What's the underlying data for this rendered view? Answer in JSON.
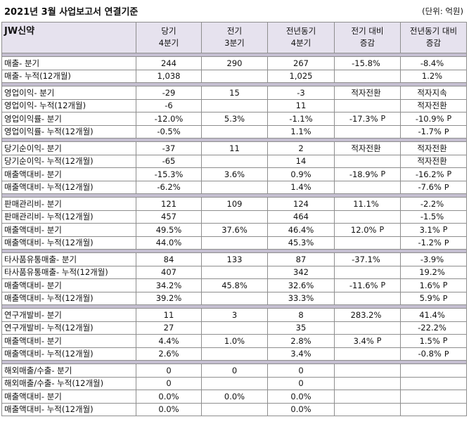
{
  "title": "2021년 3월 사업보고서 연결기준",
  "unit": "(단위: 억원)",
  "header": {
    "company": "JW신약",
    "col1": [
      "당기",
      "4분기"
    ],
    "col2": [
      "전기",
      "3분기"
    ],
    "col3": [
      "전년동기",
      "4분기"
    ],
    "col4": [
      "전기 대비",
      "증감"
    ],
    "col5": [
      "전년동기 대비",
      "증감"
    ]
  },
  "groups": [
    {
      "rows": [
        {
          "label": "매출- 분기",
          "cur": "244",
          "prev": "290",
          "yoy": "267",
          "qoq": "-15.8%",
          "qoq_p": "",
          "yoy_chg": "-8.4%",
          "yoy_p": ""
        },
        {
          "label": "매출- 누적(12개월)",
          "cur": "1,038",
          "prev": "",
          "yoy": "1,025",
          "qoq": "",
          "qoq_p": "",
          "yoy_chg": "1.2%",
          "yoy_p": ""
        }
      ]
    },
    {
      "rows": [
        {
          "label": "영업이익- 분기",
          "cur": "-29",
          "prev": "15",
          "yoy": "-3",
          "qoq": "적자전환",
          "qoq_p": "",
          "yoy_chg": "적자지속",
          "yoy_p": ""
        },
        {
          "label": "영업이익- 누적(12개월)",
          "cur": "-6",
          "prev": "",
          "yoy": "11",
          "qoq": "",
          "qoq_p": "",
          "yoy_chg": "적자전환",
          "yoy_p": ""
        },
        {
          "label": "영업이익률- 분기",
          "cur": "-12.0%",
          "prev": "5.3%",
          "yoy": "-1.1%",
          "qoq": "-17.3%",
          "qoq_p": "P",
          "yoy_chg": "-10.9%",
          "yoy_p": "P"
        },
        {
          "label": "영업이익률- 누적(12개월)",
          "cur": "-0.5%",
          "prev": "",
          "yoy": "1.1%",
          "qoq": "",
          "qoq_p": "",
          "yoy_chg": "-1.7%",
          "yoy_p": "P"
        }
      ]
    },
    {
      "rows": [
        {
          "label": "당기순이익- 분기",
          "cur": "-37",
          "prev": "11",
          "yoy": "2",
          "qoq": "적자전환",
          "qoq_p": "",
          "yoy_chg": "적자전환",
          "yoy_p": ""
        },
        {
          "label": "당기순이익- 누적(12개월)",
          "cur": "-65",
          "prev": "",
          "yoy": "14",
          "qoq": "",
          "qoq_p": "",
          "yoy_chg": "적자전환",
          "yoy_p": ""
        },
        {
          "label": "매출액대비- 분기",
          "cur": "-15.3%",
          "prev": "3.6%",
          "yoy": "0.9%",
          "qoq": "-18.9%",
          "qoq_p": "P",
          "yoy_chg": "-16.2%",
          "yoy_p": "P"
        },
        {
          "label": "매출액대비- 누적(12개월)",
          "cur": "-6.2%",
          "prev": "",
          "yoy": "1.4%",
          "qoq": "",
          "qoq_p": "",
          "yoy_chg": "-7.6%",
          "yoy_p": "P"
        }
      ]
    },
    {
      "rows": [
        {
          "label": "판매관리비- 분기",
          "cur": "121",
          "prev": "109",
          "yoy": "124",
          "qoq": "11.1%",
          "qoq_p": "",
          "yoy_chg": "-2.2%",
          "yoy_p": ""
        },
        {
          "label": "판매관리비- 누적(12개월)",
          "cur": "457",
          "prev": "",
          "yoy": "464",
          "qoq": "",
          "qoq_p": "",
          "yoy_chg": "-1.5%",
          "yoy_p": ""
        },
        {
          "label": "매출액대비- 분기",
          "cur": "49.5%",
          "prev": "37.6%",
          "yoy": "46.4%",
          "qoq": "12.0%",
          "qoq_p": "P",
          "yoy_chg": "3.1%",
          "yoy_p": "P"
        },
        {
          "label": "매출액대비- 누적(12개월)",
          "cur": "44.0%",
          "prev": "",
          "yoy": "45.3%",
          "qoq": "",
          "qoq_p": "",
          "yoy_chg": "-1.2%",
          "yoy_p": "P"
        }
      ]
    },
    {
      "rows": [
        {
          "label": "타사품유통매출- 분기",
          "cur": "84",
          "prev": "133",
          "yoy": "87",
          "qoq": "-37.1%",
          "qoq_p": "",
          "yoy_chg": "-3.9%",
          "yoy_p": ""
        },
        {
          "label": "타사품유통매출- 누적(12개월)",
          "cur": "407",
          "prev": "",
          "yoy": "342",
          "qoq": "",
          "qoq_p": "",
          "yoy_chg": "19.2%",
          "yoy_p": ""
        },
        {
          "label": "매출액대비- 분기",
          "cur": "34.2%",
          "prev": "45.8%",
          "yoy": "32.6%",
          "qoq": "-11.6%",
          "qoq_p": "P",
          "yoy_chg": "1.6%",
          "yoy_p": "P"
        },
        {
          "label": "매출액대비- 누적(12개월)",
          "cur": "39.2%",
          "prev": "",
          "yoy": "33.3%",
          "qoq": "",
          "qoq_p": "",
          "yoy_chg": "5.9%",
          "yoy_p": "P"
        }
      ]
    },
    {
      "rows": [
        {
          "label": "연구개발비- 분기",
          "cur": "11",
          "prev": "3",
          "yoy": "8",
          "qoq": "283.2%",
          "qoq_p": "",
          "yoy_chg": "41.4%",
          "yoy_p": ""
        },
        {
          "label": "연구개발비- 누적(12개월)",
          "cur": "27",
          "prev": "",
          "yoy": "35",
          "qoq": "",
          "qoq_p": "",
          "yoy_chg": "-22.2%",
          "yoy_p": ""
        },
        {
          "label": "매출액대비- 분기",
          "cur": "4.4%",
          "prev": "1.0%",
          "yoy": "2.8%",
          "qoq": "3.4%",
          "qoq_p": "P",
          "yoy_chg": "1.5%",
          "yoy_p": "P"
        },
        {
          "label": "매출액대비- 누적(12개월)",
          "cur": "2.6%",
          "prev": "",
          "yoy": "3.4%",
          "qoq": "",
          "qoq_p": "",
          "yoy_chg": "-0.8%",
          "yoy_p": "P"
        }
      ]
    },
    {
      "rows": [
        {
          "label": "해외매출/수출- 분기",
          "cur": "0",
          "prev": "0",
          "yoy": "0",
          "qoq": "",
          "qoq_p": "",
          "yoy_chg": "",
          "yoy_p": ""
        },
        {
          "label": "해외매출/수출- 누적(12개월)",
          "cur": "0",
          "prev": "",
          "yoy": "0",
          "qoq": "",
          "qoq_p": "",
          "yoy_chg": "",
          "yoy_p": ""
        },
        {
          "label": "매출액대비- 분기",
          "cur": "0.0%",
          "prev": "0.0%",
          "yoy": "0.0%",
          "qoq": "",
          "qoq_p": "",
          "yoy_chg": "",
          "yoy_p": ""
        },
        {
          "label": "매출액대비- 누적(12개월)",
          "cur": "0.0%",
          "prev": "",
          "yoy": "0.0%",
          "qoq": "",
          "qoq_p": "",
          "yoy_chg": "",
          "yoy_p": ""
        }
      ]
    }
  ]
}
